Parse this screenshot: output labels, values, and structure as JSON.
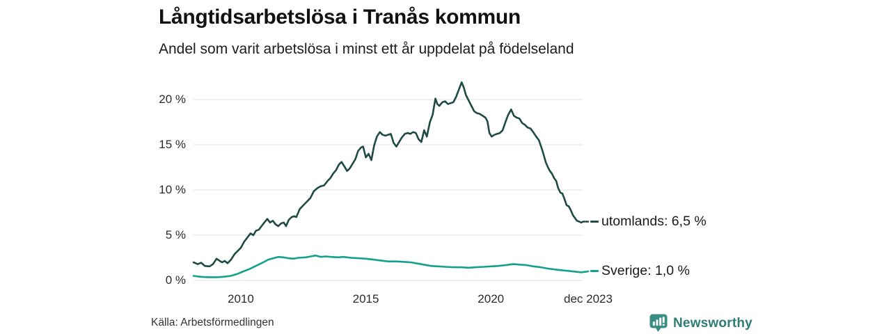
{
  "source": {
    "label": "Källa: Arbetsförmedlingen"
  },
  "branding": {
    "name": "Newsworthy",
    "logo_icon": "bar-chart-speech-bubble-icon",
    "color": "#2e7d75",
    "icon_color": "#3a8d83"
  },
  "chart_data": {
    "type": "line",
    "title": "Långtidsarbetslösa i Tranås kommun",
    "subtitle": "Andel som varit arbetslösa i minst ett år uppdelat på födelseland",
    "unit": "%",
    "grid": true,
    "grid_color": "#e7e7ea",
    "legend_position": "right-of-line-end",
    "xlim": [
      2008.11,
      2023.89
    ],
    "ylim": [
      0,
      21.92
    ],
    "x_ticks": [
      {
        "label": "2010",
        "year": 2010
      },
      {
        "label": "2015",
        "year": 2015
      },
      {
        "label": "2020",
        "year": 2020
      },
      {
        "label": "dec 2023",
        "year": 2023.89
      }
    ],
    "y_ticks": [
      {
        "label": "20 %",
        "value": 20
      },
      {
        "label": "15 %",
        "value": 15
      },
      {
        "label": "10 %",
        "value": 10
      },
      {
        "label": "5 %",
        "value": 5
      },
      {
        "label": "0 %",
        "value": 0
      }
    ],
    "series": [
      {
        "name": "utomlands",
        "legend_label": "utomlands: 6,5 %",
        "end_value": 6.5,
        "color": "#1f4a43",
        "points": [
          [
            2008.11,
            2.0
          ],
          [
            2008.28,
            1.8
          ],
          [
            2008.42,
            1.95
          ],
          [
            2008.56,
            1.6
          ],
          [
            2008.75,
            1.55
          ],
          [
            2008.89,
            1.8
          ],
          [
            2009.03,
            2.4
          ],
          [
            2009.14,
            2.2
          ],
          [
            2009.25,
            2.0
          ],
          [
            2009.36,
            2.15
          ],
          [
            2009.47,
            1.9
          ],
          [
            2009.61,
            2.3
          ],
          [
            2009.75,
            2.9
          ],
          [
            2009.89,
            3.3
          ],
          [
            2010.0,
            3.6
          ],
          [
            2010.14,
            4.3
          ],
          [
            2010.28,
            4.8
          ],
          [
            2010.39,
            5.2
          ],
          [
            2010.5,
            5.0
          ],
          [
            2010.61,
            5.5
          ],
          [
            2010.72,
            5.6
          ],
          [
            2010.83,
            6.0
          ],
          [
            2010.94,
            6.4
          ],
          [
            2011.06,
            6.8
          ],
          [
            2011.17,
            6.4
          ],
          [
            2011.28,
            6.6
          ],
          [
            2011.39,
            6.2
          ],
          [
            2011.5,
            6.0
          ],
          [
            2011.61,
            6.3
          ],
          [
            2011.72,
            6.4
          ],
          [
            2011.81,
            6.0
          ],
          [
            2011.92,
            6.7
          ],
          [
            2012.03,
            7.0
          ],
          [
            2012.14,
            7.1
          ],
          [
            2012.22,
            7.0
          ],
          [
            2012.36,
            7.9
          ],
          [
            2012.5,
            8.3
          ],
          [
            2012.64,
            8.7
          ],
          [
            2012.78,
            9.1
          ],
          [
            2012.92,
            9.85
          ],
          [
            2013.06,
            10.2
          ],
          [
            2013.19,
            10.4
          ],
          [
            2013.33,
            10.5
          ],
          [
            2013.47,
            11.0
          ],
          [
            2013.58,
            11.3
          ],
          [
            2013.69,
            11.8
          ],
          [
            2013.81,
            12.2
          ],
          [
            2013.92,
            12.8
          ],
          [
            2014.03,
            13.1
          ],
          [
            2014.14,
            12.6
          ],
          [
            2014.25,
            12.1
          ],
          [
            2014.36,
            12.4
          ],
          [
            2014.47,
            12.9
          ],
          [
            2014.58,
            13.4
          ],
          [
            2014.69,
            14.3
          ],
          [
            2014.81,
            14.7
          ],
          [
            2014.89,
            14.8
          ],
          [
            2015.0,
            13.6
          ],
          [
            2015.11,
            14.0
          ],
          [
            2015.22,
            13.3
          ],
          [
            2015.33,
            14.9
          ],
          [
            2015.44,
            15.9
          ],
          [
            2015.56,
            16.4
          ],
          [
            2015.67,
            16.1
          ],
          [
            2015.78,
            16.0
          ],
          [
            2015.89,
            16.1
          ],
          [
            2016.0,
            16.2
          ],
          [
            2016.11,
            15.2
          ],
          [
            2016.22,
            14.8
          ],
          [
            2016.33,
            15.3
          ],
          [
            2016.44,
            15.8
          ],
          [
            2016.56,
            16.2
          ],
          [
            2016.67,
            16.3
          ],
          [
            2016.78,
            16.2
          ],
          [
            2016.89,
            16.4
          ],
          [
            2017.0,
            16.3
          ],
          [
            2017.11,
            15.6
          ],
          [
            2017.22,
            15.3
          ],
          [
            2017.33,
            16.6
          ],
          [
            2017.44,
            15.9
          ],
          [
            2017.56,
            17.5
          ],
          [
            2017.67,
            18.3
          ],
          [
            2017.78,
            20.1
          ],
          [
            2017.86,
            19.5
          ],
          [
            2017.94,
            19.3
          ],
          [
            2018.06,
            19.7
          ],
          [
            2018.17,
            19.8
          ],
          [
            2018.28,
            19.5
          ],
          [
            2018.39,
            19.6
          ],
          [
            2018.5,
            19.7
          ],
          [
            2018.61,
            20.3
          ],
          [
            2018.72,
            21.1
          ],
          [
            2018.83,
            21.9
          ],
          [
            2018.92,
            21.3
          ],
          [
            2019.0,
            20.5
          ],
          [
            2019.11,
            19.9
          ],
          [
            2019.22,
            19.3
          ],
          [
            2019.33,
            18.7
          ],
          [
            2019.44,
            18.5
          ],
          [
            2019.56,
            18.4
          ],
          [
            2019.67,
            18.2
          ],
          [
            2019.78,
            18.0
          ],
          [
            2019.86,
            17.6
          ],
          [
            2019.94,
            16.3
          ],
          [
            2020.03,
            15.9
          ],
          [
            2020.14,
            16.1
          ],
          [
            2020.25,
            16.2
          ],
          [
            2020.36,
            16.3
          ],
          [
            2020.47,
            16.6
          ],
          [
            2020.58,
            17.5
          ],
          [
            2020.69,
            18.3
          ],
          [
            2020.81,
            18.9
          ],
          [
            2020.92,
            18.2
          ],
          [
            2021.03,
            18.0
          ],
          [
            2021.14,
            17.9
          ],
          [
            2021.25,
            17.4
          ],
          [
            2021.36,
            17.2
          ],
          [
            2021.47,
            16.9
          ],
          [
            2021.58,
            16.8
          ],
          [
            2021.69,
            16.4
          ],
          [
            2021.81,
            15.9
          ],
          [
            2021.92,
            15.5
          ],
          [
            2022.03,
            14.6
          ],
          [
            2022.11,
            13.9
          ],
          [
            2022.19,
            13.1
          ],
          [
            2022.28,
            12.5
          ],
          [
            2022.36,
            12.1
          ],
          [
            2022.44,
            11.8
          ],
          [
            2022.53,
            11.3
          ],
          [
            2022.61,
            11.0
          ],
          [
            2022.69,
            10.2
          ],
          [
            2022.78,
            9.7
          ],
          [
            2022.86,
            9.6
          ],
          [
            2022.94,
            9.0
          ],
          [
            2023.03,
            8.3
          ],
          [
            2023.11,
            8.2
          ],
          [
            2023.19,
            7.8
          ],
          [
            2023.28,
            7.2
          ],
          [
            2023.36,
            6.9
          ],
          [
            2023.44,
            6.6
          ],
          [
            2023.53,
            6.5
          ],
          [
            2023.61,
            6.4
          ],
          [
            2023.69,
            6.5
          ],
          [
            2023.78,
            6.5
          ],
          [
            2023.89,
            6.5
          ]
        ]
      },
      {
        "name": "sverige",
        "legend_label": "Sverige: 1,0 %",
        "end_value": 1.0,
        "color": "#13a08c",
        "points": [
          [
            2008.11,
            0.5
          ],
          [
            2008.4,
            0.4
          ],
          [
            2008.7,
            0.35
          ],
          [
            2009.0,
            0.35
          ],
          [
            2009.3,
            0.4
          ],
          [
            2009.6,
            0.5
          ],
          [
            2009.9,
            0.75
          ],
          [
            2010.1,
            1.0
          ],
          [
            2010.3,
            1.2
          ],
          [
            2010.6,
            1.6
          ],
          [
            2010.9,
            2.0
          ],
          [
            2011.1,
            2.3
          ],
          [
            2011.3,
            2.45
          ],
          [
            2011.5,
            2.6
          ],
          [
            2011.7,
            2.55
          ],
          [
            2011.9,
            2.45
          ],
          [
            2012.1,
            2.4
          ],
          [
            2012.3,
            2.5
          ],
          [
            2012.6,
            2.55
          ],
          [
            2012.8,
            2.65
          ],
          [
            2013.0,
            2.75
          ],
          [
            2013.2,
            2.6
          ],
          [
            2013.4,
            2.65
          ],
          [
            2013.6,
            2.6
          ],
          [
            2013.9,
            2.55
          ],
          [
            2014.1,
            2.6
          ],
          [
            2014.4,
            2.5
          ],
          [
            2014.7,
            2.45
          ],
          [
            2015.0,
            2.4
          ],
          [
            2015.3,
            2.3
          ],
          [
            2015.6,
            2.2
          ],
          [
            2015.9,
            2.1
          ],
          [
            2016.2,
            2.1
          ],
          [
            2016.5,
            2.05
          ],
          [
            2016.8,
            2.0
          ],
          [
            2017.0,
            1.9
          ],
          [
            2017.3,
            1.75
          ],
          [
            2017.6,
            1.6
          ],
          [
            2017.9,
            1.55
          ],
          [
            2018.2,
            1.5
          ],
          [
            2018.5,
            1.45
          ],
          [
            2018.8,
            1.45
          ],
          [
            2019.1,
            1.4
          ],
          [
            2019.4,
            1.45
          ],
          [
            2019.7,
            1.5
          ],
          [
            2020.0,
            1.55
          ],
          [
            2020.3,
            1.6
          ],
          [
            2020.6,
            1.7
          ],
          [
            2020.9,
            1.8
          ],
          [
            2021.1,
            1.75
          ],
          [
            2021.4,
            1.7
          ],
          [
            2021.7,
            1.55
          ],
          [
            2022.0,
            1.45
          ],
          [
            2022.3,
            1.3
          ],
          [
            2022.6,
            1.2
          ],
          [
            2022.9,
            1.1
          ],
          [
            2023.1,
            1.05
          ],
          [
            2023.4,
            0.95
          ],
          [
            2023.6,
            0.9
          ],
          [
            2023.8,
            0.95
          ],
          [
            2023.89,
            1.0
          ]
        ]
      }
    ]
  }
}
